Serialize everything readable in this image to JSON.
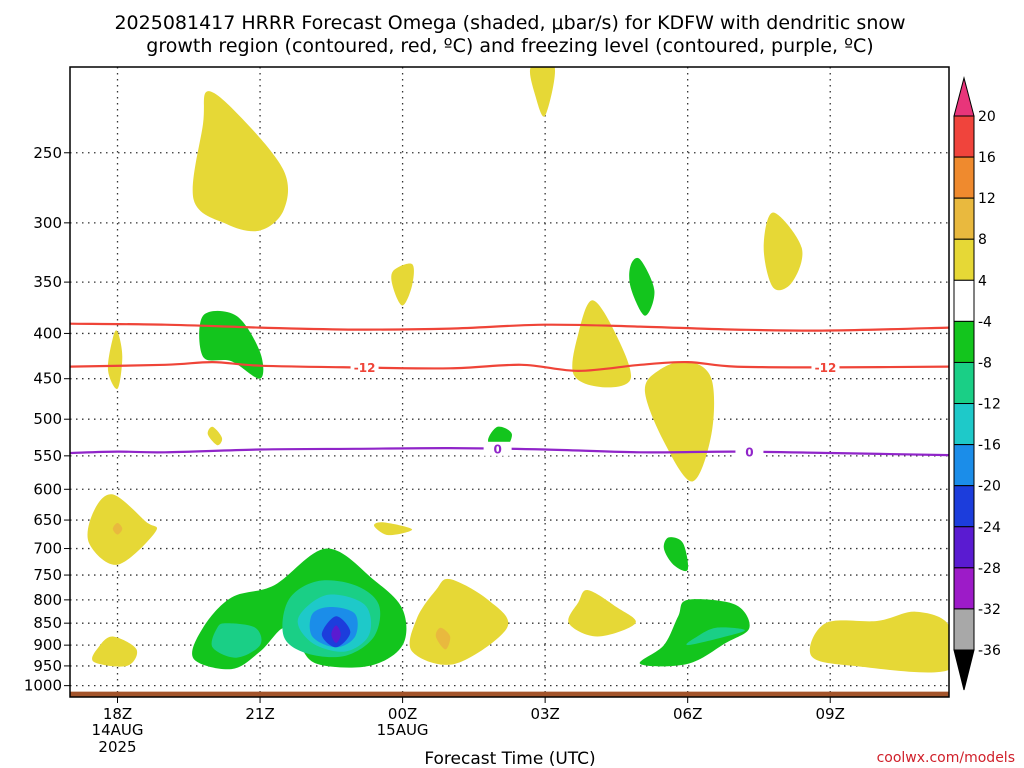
{
  "title": {
    "line1": "2025081417 HRRR Forecast Omega (shaded, μbar/s) for KDFW with dendritic snow",
    "line2": "growth region (contoured, red, ºC) and freezing level (contoured, purple, ºC)"
  },
  "credit": "coolwx.com/models",
  "chart_data": {
    "type": "time-height contour",
    "xlabel": "Forecast Time (UTC)",
    "ylabel": "",
    "x_ticks": [
      {
        "hour": 0,
        "label": "18Z",
        "sub1": "14AUG",
        "sub2": "2025"
      },
      {
        "hour": 3,
        "label": "21Z",
        "sub1": "",
        "sub2": ""
      },
      {
        "hour": 6,
        "label": "00Z",
        "sub1": "15AUG",
        "sub2": ""
      },
      {
        "hour": 9,
        "label": "03Z",
        "sub1": "",
        "sub2": ""
      },
      {
        "hour": 12,
        "label": "06Z",
        "sub1": "",
        "sub2": ""
      },
      {
        "hour": 15,
        "label": "09Z",
        "sub1": "",
        "sub2": ""
      }
    ],
    "x_range_hours": [
      -1,
      17.5
    ],
    "y_ticks": [
      "250",
      "300",
      "350",
      "400",
      "450",
      "500",
      "550",
      "600",
      "650",
      "700",
      "750",
      "800",
      "850",
      "900",
      "950",
      "1000"
    ],
    "y_range_mb": [
      200,
      1030
    ],
    "y_scale": "log-pressure (inverted)",
    "ground_level_mb": 1000,
    "colorbar": {
      "labels": [
        "20",
        "16",
        "12",
        "8",
        "4",
        "-4",
        "-8",
        "-12",
        "-16",
        "-20",
        "-24",
        "-28",
        "-32",
        "-36"
      ],
      "colors": [
        "#e8357a",
        "#f0443c",
        "#ef8a2e",
        "#e9b93e",
        "#e6d836",
        "#ffffff",
        "#13c51d",
        "#1acf86",
        "#1ec9c9",
        "#1b8de9",
        "#1c3ddc",
        "#5a1bd1",
        "#9d1bc8",
        "#a8a8a8",
        "#000000"
      ]
    },
    "dgz_contours": [
      {
        "value": -12,
        "label": "-12",
        "color": "#ef4438",
        "points": [
          [
            -1,
            390
          ],
          [
            1,
            391
          ],
          [
            3,
            394
          ],
          [
            5,
            396
          ],
          [
            7,
            395
          ],
          [
            9,
            391
          ],
          [
            11,
            393
          ],
          [
            13,
            396
          ],
          [
            15,
            397
          ],
          [
            17.5,
            394
          ]
        ]
      },
      {
        "value": -12,
        "label": "-12",
        "color": "#ef4438",
        "points": [
          [
            -1,
            436
          ],
          [
            1,
            434
          ],
          [
            2,
            431
          ],
          [
            3,
            435
          ],
          [
            5,
            437
          ],
          [
            7,
            438
          ],
          [
            8.5,
            434
          ],
          [
            9.7,
            441
          ],
          [
            11,
            434
          ],
          [
            12,
            431
          ],
          [
            13,
            436
          ],
          [
            15,
            437
          ],
          [
            17.5,
            436
          ]
        ]
      }
    ],
    "freezing_level": {
      "value": 0,
      "label": "0",
      "color": "#9025c9",
      "points": [
        [
          -1,
          546
        ],
        [
          0,
          544
        ],
        [
          1,
          545
        ],
        [
          3,
          541
        ],
        [
          5,
          540
        ],
        [
          7,
          539
        ],
        [
          9,
          541
        ],
        [
          11,
          545
        ],
        [
          13,
          544
        ],
        [
          15,
          546
        ],
        [
          17.5,
          549
        ]
      ]
    },
    "omega_regions": [
      {
        "level": 4,
        "color": "#e6d836",
        "points": [
          [
            1.9,
            213
          ],
          [
            2.6,
            228
          ],
          [
            3.5,
            262
          ],
          [
            3.5,
            290
          ],
          [
            3,
            306
          ],
          [
            2.3,
            301
          ],
          [
            1.6,
            282
          ],
          [
            1.8,
            232
          ]
        ]
      },
      {
        "level": 4,
        "color": "#e6d836",
        "points": [
          [
            8.7,
            200
          ],
          [
            9.2,
            200
          ],
          [
            9.0,
            227
          ],
          [
            8.8,
            216
          ]
        ]
      },
      {
        "level": 4,
        "color": "#e6d836",
        "points": [
          [
            5.8,
            340
          ],
          [
            6.2,
            334
          ],
          [
            6.2,
            353
          ],
          [
            6.0,
            372
          ],
          [
            5.8,
            355
          ]
        ]
      },
      {
        "level": 4,
        "color": "#e6d836",
        "points": [
          [
            13.8,
            292
          ],
          [
            14.4,
            320
          ],
          [
            14.2,
            350
          ],
          [
            13.8,
            355
          ],
          [
            13.6,
            320
          ]
        ]
      },
      {
        "level": 4,
        "color": "#e6d836",
        "points": [
          [
            10.0,
            367
          ],
          [
            10.5,
            402
          ],
          [
            10.8,
            450
          ],
          [
            10.2,
            460
          ],
          [
            9.6,
            445
          ],
          [
            9.7,
            400
          ]
        ]
      },
      {
        "level": 4,
        "color": "#e6d836",
        "points": [
          [
            0.0,
            398
          ],
          [
            0.1,
            425
          ],
          [
            0.0,
            462
          ],
          [
            -0.2,
            440
          ],
          [
            -0.1,
            405
          ]
        ]
      },
      {
        "level": 4,
        "color": "#e6d836",
        "points": [
          [
            12.0,
            430
          ],
          [
            12.5,
            450
          ],
          [
            12.5,
            520
          ],
          [
            12.1,
            588
          ],
          [
            11.5,
            530
          ],
          [
            11.1,
            465
          ],
          [
            11.4,
            440
          ]
        ]
      },
      {
        "level": 4,
        "color": "#e6d836",
        "points": [
          [
            2.0,
            510
          ],
          [
            2.2,
            525
          ],
          [
            2.1,
            535
          ],
          [
            1.9,
            520
          ]
        ]
      },
      {
        "level": 4,
        "color": "#e6d836",
        "points": [
          [
            -0.1,
            608
          ],
          [
            0.6,
            653
          ],
          [
            0.8,
            670
          ],
          [
            0.0,
            730
          ],
          [
            -0.6,
            690
          ],
          [
            -0.5,
            635
          ]
        ]
      },
      {
        "level": 4,
        "color": "#e6d836",
        "points": [
          [
            5.6,
            654
          ],
          [
            6.2,
            666
          ],
          [
            5.7,
            676
          ],
          [
            5.4,
            660
          ]
        ]
      },
      {
        "level": 4,
        "color": "#e6d836",
        "points": [
          [
            7.0,
            758
          ],
          [
            7.8,
            800
          ],
          [
            8.2,
            860
          ],
          [
            7.1,
            945
          ],
          [
            6.2,
            915
          ],
          [
            6.3,
            840
          ],
          [
            6.7,
            780
          ]
        ]
      },
      {
        "level": 4,
        "color": "#e6d836",
        "points": [
          [
            9.9,
            780
          ],
          [
            10.5,
            815
          ],
          [
            10.9,
            850
          ],
          [
            10.1,
            880
          ],
          [
            9.5,
            850
          ],
          [
            9.7,
            805
          ]
        ]
      },
      {
        "level": 4,
        "color": "#e6d836",
        "points": [
          [
            -0.1,
            880
          ],
          [
            0.4,
            910
          ],
          [
            0.2,
            950
          ],
          [
            -0.5,
            940
          ],
          [
            -0.4,
            905
          ]
        ]
      },
      {
        "level": 4,
        "color": "#e6d836",
        "points": [
          [
            14.9,
            850
          ],
          [
            16.0,
            845
          ],
          [
            16.8,
            825
          ],
          [
            17.5,
            855
          ],
          [
            17.5,
            960
          ],
          [
            15.5,
            950
          ],
          [
            14.6,
            925
          ]
        ]
      },
      {
        "level": 8,
        "color": "#e9b93e",
        "points": [
          [
            6.8,
            860
          ],
          [
            7.0,
            880
          ],
          [
            6.9,
            910
          ],
          [
            6.7,
            880
          ]
        ]
      },
      {
        "level": 8,
        "color": "#e9b93e",
        "points": [
          [
            0.0,
            655
          ],
          [
            0.1,
            665
          ],
          [
            0.0,
            675
          ],
          [
            -0.1,
            665
          ]
        ]
      },
      {
        "level": -4,
        "color": "#13c51d",
        "points": [
          [
            1.8,
            382
          ],
          [
            2.5,
            382
          ],
          [
            3.0,
            420
          ],
          [
            3.0,
            450
          ],
          [
            2.4,
            430
          ],
          [
            1.8,
            425
          ]
        ]
      },
      {
        "level": -4,
        "color": "#13c51d",
        "points": [
          [
            11.0,
            330
          ],
          [
            11.3,
            358
          ],
          [
            11.1,
            382
          ],
          [
            10.8,
            355
          ],
          [
            10.8,
            335
          ]
        ]
      },
      {
        "level": -4,
        "color": "#13c51d",
        "points": [
          [
            8.0,
            510
          ],
          [
            8.3,
            520
          ],
          [
            8.1,
            545
          ],
          [
            7.8,
            530
          ]
        ]
      },
      {
        "level": -4,
        "color": "#13c51d",
        "points": [
          [
            11.6,
            680
          ],
          [
            11.9,
            690
          ],
          [
            12.0,
            740
          ],
          [
            11.7,
            730
          ],
          [
            11.5,
            700
          ]
        ]
      },
      {
        "level": -4,
        "color": "#13c51d",
        "points": [
          [
            12.0,
            800
          ],
          [
            13.0,
            810
          ],
          [
            13.3,
            860
          ],
          [
            12.8,
            895
          ],
          [
            12.0,
            945
          ],
          [
            11.0,
            945
          ],
          [
            11.5,
            900
          ],
          [
            11.8,
            835
          ]
        ]
      },
      {
        "level": -4,
        "color": "#13c51d",
        "points": [
          [
            4.4,
            700
          ],
          [
            5.4,
            760
          ],
          [
            6.0,
            820
          ],
          [
            6.0,
            900
          ],
          [
            5.3,
            950
          ],
          [
            4.2,
            945
          ],
          [
            3.8,
            895
          ],
          [
            3.5,
            860
          ],
          [
            3.0,
            915
          ],
          [
            2.4,
            958
          ],
          [
            1.6,
            932
          ],
          [
            1.8,
            860
          ],
          [
            2.4,
            795
          ],
          [
            3.3,
            770
          ]
        ]
      },
      {
        "level": -8,
        "color": "#1acf86",
        "points": [
          [
            2.3,
            850
          ],
          [
            2.9,
            860
          ],
          [
            3.0,
            900
          ],
          [
            2.5,
            930
          ],
          [
            2.0,
            905
          ],
          [
            2.1,
            860
          ]
        ]
      },
      {
        "level": -8,
        "color": "#1acf86",
        "points": [
          [
            4.2,
            762
          ],
          [
            5.0,
            770
          ],
          [
            5.5,
            810
          ],
          [
            5.4,
            880
          ],
          [
            4.8,
            925
          ],
          [
            4.0,
            920
          ],
          [
            3.5,
            880
          ],
          [
            3.6,
            800
          ]
        ]
      },
      {
        "level": -8,
        "color": "#1acf86",
        "points": [
          [
            12.6,
            860
          ],
          [
            13.2,
            865
          ],
          [
            12.8,
            880
          ],
          [
            12.0,
            900
          ],
          [
            12.2,
            880
          ]
        ]
      },
      {
        "level": -12,
        "color": "#1ec9c9",
        "points": [
          [
            4.4,
            790
          ],
          [
            5.2,
            810
          ],
          [
            5.3,
            875
          ],
          [
            4.8,
            915
          ],
          [
            4.1,
            895
          ],
          [
            3.8,
            840
          ]
        ]
      },
      {
        "level": -16,
        "color": "#1b8de9",
        "points": [
          [
            4.5,
            815
          ],
          [
            5.0,
            830
          ],
          [
            5.0,
            880
          ],
          [
            4.6,
            905
          ],
          [
            4.1,
            880
          ],
          [
            4.1,
            830
          ]
        ]
      },
      {
        "level": -20,
        "color": "#1c3ddc",
        "points": [
          [
            4.6,
            835
          ],
          [
            4.9,
            870
          ],
          [
            4.6,
            905
          ],
          [
            4.3,
            875
          ]
        ]
      },
      {
        "level": -24,
        "color": "#5a1bd1",
        "points": [
          [
            4.6,
            855
          ],
          [
            4.7,
            875
          ],
          [
            4.6,
            895
          ],
          [
            4.5,
            875
          ]
        ]
      }
    ]
  }
}
